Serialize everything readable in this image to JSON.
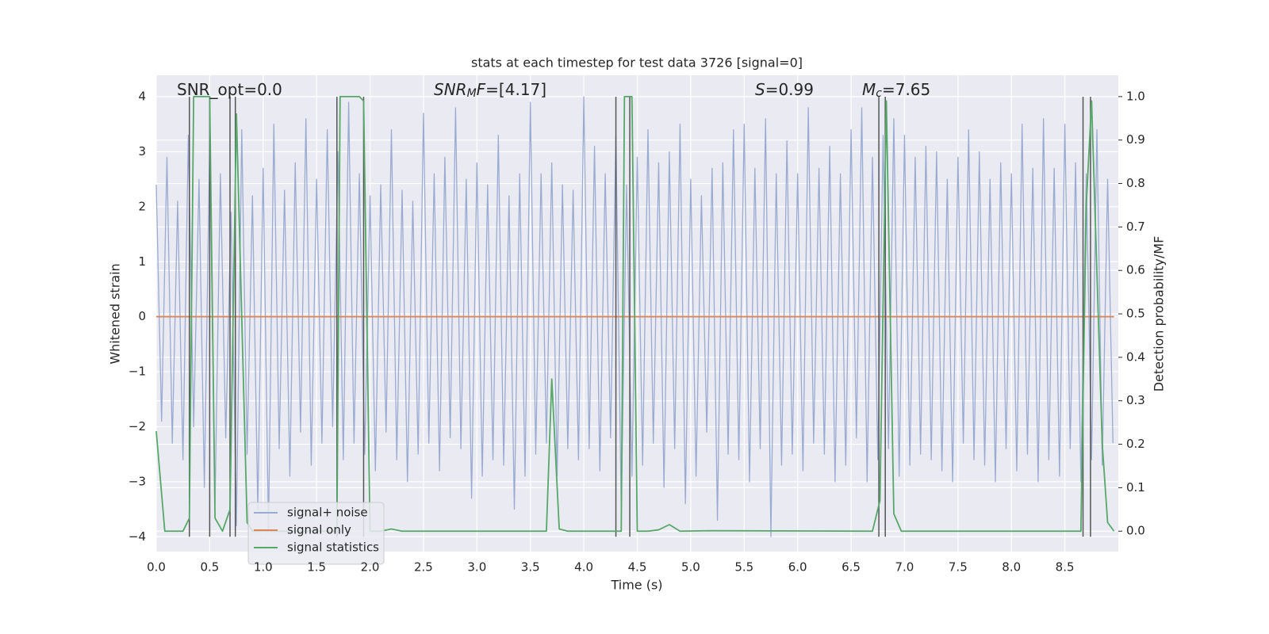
{
  "chart_data": {
    "type": "line",
    "title": "stats at each timestep for test data 3726 [signal=0]",
    "xlabel": "Time (s)",
    "ylabel": "Whitened strain",
    "y2label": "Detection probability/MF",
    "annotations": [
      [
        {
          "text": "SNR_opt=0.0"
        }
      ],
      [
        {
          "text": "SNR",
          "italic": true
        },
        {
          "text": "M",
          "italic": true,
          "sub": true
        },
        {
          "text": "F",
          "italic": true
        },
        {
          "text": "=[4.17]"
        }
      ],
      [
        {
          "text": "S",
          "italic": true
        },
        {
          "text": "=0.99"
        }
      ],
      [
        {
          "text": "M",
          "italic": true
        },
        {
          "text": "c",
          "italic": true,
          "sub": true
        },
        {
          "text": "=7.65"
        }
      ]
    ],
    "x": [
      0,
      0.05,
      0.1,
      0.15,
      0.2,
      0.25,
      0.3,
      0.35,
      0.4,
      0.45,
      0.5,
      0.55,
      0.6,
      0.65,
      0.7,
      0.75,
      0.8,
      0.85,
      0.9,
      0.95,
      1,
      1.05,
      1.1,
      1.15,
      1.2,
      1.25,
      1.3,
      1.35,
      1.4,
      1.45,
      1.5,
      1.55,
      1.6,
      1.65,
      1.7,
      1.75,
      1.8,
      1.85,
      1.9,
      1.95,
      2,
      2.05,
      2.1,
      2.15,
      2.2,
      2.25,
      2.3,
      2.35,
      2.4,
      2.45,
      2.5,
      2.55,
      2.6,
      2.65,
      2.7,
      2.75,
      2.8,
      2.85,
      2.9,
      2.95,
      3,
      3.05,
      3.1,
      3.15,
      3.2,
      3.25,
      3.3,
      3.35,
      3.4,
      3.45,
      3.5,
      3.55,
      3.6,
      3.65,
      3.7,
      3.75,
      3.8,
      3.85,
      3.9,
      3.95,
      4,
      4.05,
      4.1,
      4.15,
      4.2,
      4.25,
      4.3,
      4.35,
      4.4,
      4.45,
      4.5,
      4.55,
      4.6,
      4.65,
      4.7,
      4.75,
      4.8,
      4.85,
      4.9,
      4.95,
      5,
      5.05,
      5.1,
      5.15,
      5.2,
      5.25,
      5.3,
      5.35,
      5.4,
      5.45,
      5.5,
      5.55,
      5.6,
      5.65,
      5.7,
      5.75,
      5.8,
      5.85,
      5.9,
      5.95,
      6,
      6.05,
      6.1,
      6.15,
      6.2,
      6.25,
      6.3,
      6.35,
      6.4,
      6.45,
      6.5,
      6.55,
      6.6,
      6.65,
      6.7,
      6.75,
      6.8,
      6.85,
      6.9,
      6.95,
      7,
      7.05,
      7.1,
      7.15,
      7.2,
      7.25,
      7.3,
      7.35,
      7.4,
      7.45,
      7.5,
      7.55,
      7.6,
      7.65,
      7.7,
      7.75,
      7.8,
      7.85,
      7.9,
      7.95,
      8,
      8.05,
      8.1,
      8.15,
      8.2,
      8.25,
      8.3,
      8.35,
      8.4,
      8.45,
      8.5,
      8.55,
      8.6,
      8.65,
      8.7,
      8.75,
      8.8,
      8.85,
      8.9,
      8.95
    ],
    "series": [
      {
        "name": "signal+ noise",
        "color": "#9aabd1",
        "values": [
          2.4,
          -1.9,
          2.9,
          -2.3,
          2.1,
          -2.6,
          3.3,
          -2.0,
          2.5,
          -3.1,
          3.2,
          -3.4,
          2.6,
          -2.2,
          1.9,
          -3.8,
          3.4,
          -2.5,
          2.2,
          -3.5,
          2.7,
          -3.9,
          3.5,
          -2.4,
          2.3,
          -2.9,
          2.8,
          -2.1,
          3.6,
          -2.7,
          2.5,
          -2.3,
          3.4,
          -2.0,
          3.0,
          -2.6,
          3.9,
          -2.3,
          2.6,
          -2.5,
          2.2,
          -2.8,
          2.4,
          -2.1,
          3.4,
          -2.6,
          2.3,
          -3.0,
          2.1,
          -2.5,
          3.7,
          -2.3,
          2.6,
          -2.8,
          2.9,
          -2.2,
          3.8,
          -2.4,
          2.5,
          -3.3,
          2.8,
          -2.9,
          2.4,
          -2.6,
          3.3,
          -2.7,
          2.2,
          -3.5,
          2.6,
          -2.9,
          3.9,
          -2.5,
          2.6,
          -2.3,
          2.8,
          -2.9,
          2.4,
          -2.4,
          2.3,
          -2.6,
          4.0,
          -2.4,
          3.1,
          -2.8,
          2.6,
          -2.2,
          3.3,
          -3.5,
          2.4,
          -2.9,
          2.9,
          -2.7,
          3.4,
          -2.3,
          2.8,
          -3.1,
          3.0,
          -2.4,
          3.5,
          -3.4,
          2.5,
          -2.9,
          2.2,
          -2.1,
          2.7,
          -3.7,
          2.8,
          -2.5,
          3.4,
          -2.6,
          3.5,
          -3.0,
          2.7,
          -2.4,
          3.6,
          -4.0,
          2.6,
          -2.7,
          3.2,
          -2.5,
          2.6,
          -2.8,
          3.8,
          -2.3,
          2.7,
          -2.5,
          3.1,
          -3.0,
          2.6,
          -2.7,
          3.4,
          -2.2,
          3.8,
          -3.0,
          2.9,
          -2.6,
          3.3,
          -2.4,
          3.6,
          -2.9,
          3.3,
          -2.7,
          2.9,
          -2.5,
          3.1,
          -2.6,
          3.0,
          -2.8,
          2.5,
          -3.0,
          2.9,
          -2.3,
          3.4,
          -2.6,
          3.0,
          -2.7,
          2.5,
          -3.0,
          2.8,
          -2.4,
          2.6,
          -2.8,
          3.5,
          -2.5,
          2.7,
          -3.0,
          3.6,
          -2.6,
          2.7,
          -2.9,
          3.5,
          -2.4,
          2.8,
          -3.0,
          2.6,
          -2.6,
          3.4,
          -2.7,
          2.5,
          -2.3
        ]
      },
      {
        "name": "signal only",
        "color": "#dd8452",
        "x": [
          0,
          8.96
        ],
        "values": [
          0,
          0
        ]
      },
      {
        "name": "signal statistics",
        "color": "#55a868",
        "axis": "y2",
        "x": [
          0,
          0.08,
          0.25,
          0.31,
          0.35,
          0.5,
          0.55,
          0.62,
          0.69,
          0.75,
          0.85,
          0.9,
          1.64,
          1.69,
          1.72,
          1.9,
          1.94,
          2.0,
          2.1,
          2.2,
          2.3,
          3.65,
          3.7,
          3.77,
          3.85,
          4.3,
          4.35,
          4.38,
          4.45,
          4.5,
          4.6,
          4.7,
          4.8,
          4.9,
          5.2,
          6.7,
          6.77,
          6.83,
          6.9,
          6.97,
          8.65,
          8.7,
          8.75,
          8.85,
          8.9,
          8.96
        ],
        "values": [
          0.23,
          0,
          0,
          0.03,
          1,
          1,
          0.03,
          0,
          0.05,
          0.96,
          0.02,
          0,
          0,
          0,
          1,
          1,
          0.99,
          0,
          0,
          0.005,
          0,
          0,
          0.35,
          0.005,
          0,
          0,
          0,
          1,
          1,
          0,
          0,
          0.003,
          0.015,
          0,
          0.001,
          0,
          0.07,
          0.99,
          0.04,
          0,
          0,
          0.75,
          0.99,
          0.2,
          0.02,
          0
        ]
      }
    ],
    "vlines": {
      "x": [
        0.31,
        0.5,
        0.69,
        0.74,
        1.69,
        1.94,
        4.3,
        4.43,
        6.76,
        6.82,
        8.67,
        8.74
      ],
      "ymin": -4,
      "ymax": 4,
      "color": "#555555"
    },
    "xlim": [
      0,
      9.0
    ],
    "ylim": [
      -4.27,
      4.39
    ],
    "y2lim": [
      -0.047,
      1.049
    ],
    "xticks": [
      {
        "value": 0,
        "label": "0.0"
      },
      {
        "value": 0.5,
        "label": "0.5"
      },
      {
        "value": 1,
        "label": "1.0"
      },
      {
        "value": 1.5,
        "label": "1.5"
      },
      {
        "value": 2,
        "label": "2.0"
      },
      {
        "value": 2.5,
        "label": "2.5"
      },
      {
        "value": 3,
        "label": "3.0"
      },
      {
        "value": 3.5,
        "label": "3.5"
      },
      {
        "value": 4,
        "label": "4.0"
      },
      {
        "value": 4.5,
        "label": "4.5"
      },
      {
        "value": 5,
        "label": "5.0"
      },
      {
        "value": 5.5,
        "label": "5.5"
      },
      {
        "value": 6,
        "label": "6.0"
      },
      {
        "value": 6.5,
        "label": "6.5"
      },
      {
        "value": 7,
        "label": "7.0"
      },
      {
        "value": 7.5,
        "label": "7.5"
      },
      {
        "value": 8,
        "label": "8.0"
      },
      {
        "value": 8.5,
        "label": "8.5"
      }
    ],
    "yticks": [
      {
        "value": -4,
        "label": "−4"
      },
      {
        "value": -3,
        "label": "−3"
      },
      {
        "value": -2,
        "label": "−2"
      },
      {
        "value": -1,
        "label": "−1"
      },
      0,
      1,
      2,
      3,
      4
    ],
    "y2ticks": [
      {
        "value": 0,
        "label": "0.0"
      },
      {
        "value": 0.1,
        "label": "0.1"
      },
      {
        "value": 0.2,
        "label": "0.2"
      },
      {
        "value": 0.3,
        "label": "0.3"
      },
      {
        "value": 0.4,
        "label": "0.4"
      },
      {
        "value": 0.5,
        "label": "0.5"
      },
      {
        "value": 0.6,
        "label": "0.6"
      },
      {
        "value": 0.7,
        "label": "0.7"
      },
      {
        "value": 0.8,
        "label": "0.8"
      },
      {
        "value": 0.9,
        "label": "0.9"
      },
      {
        "value": 1,
        "label": "1.0"
      }
    ],
    "grid": true,
    "legend": "lower left"
  }
}
